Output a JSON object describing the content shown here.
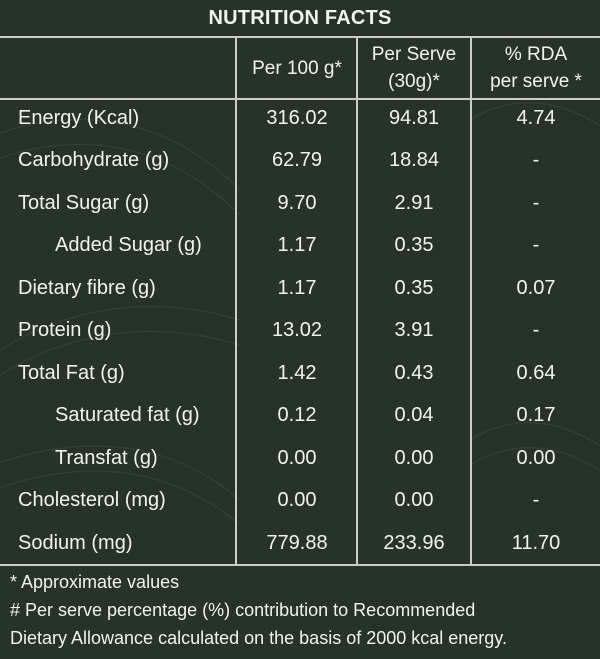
{
  "title": "NUTRITION FACTS",
  "headers": [
    {
      "line1": "Per 100 g*",
      "line2": ""
    },
    {
      "line1": "Per Serve",
      "line2": "(30g)*"
    },
    {
      "line1": "% RDA",
      "line2": "per serve *"
    }
  ],
  "rows": [
    {
      "name": "Energy (Kcal)",
      "per100": "316.02",
      "serve": "94.81",
      "rda": "4.74"
    },
    {
      "name": "Carbohydrate (g)",
      "per100": "62.79",
      "serve": "18.84",
      "rda": "-"
    },
    {
      "name": "Total Sugar (g)",
      "per100": "9.70",
      "serve": "2.91",
      "rda": "-"
    },
    {
      "name": "Added Sugar (g)",
      "per100": "1.17",
      "serve": "0.35",
      "rda": "-"
    },
    {
      "name": "Dietary fibre (g)",
      "per100": "1.17",
      "serve": "0.35",
      "rda": "0.07"
    },
    {
      "name": "Protein (g)",
      "per100": "13.02",
      "serve": "3.91",
      "rda": "-"
    },
    {
      "name": "Total Fat (g)",
      "per100": "1.42",
      "serve": "0.43",
      "rda": "0.64"
    },
    {
      "name": "Saturated fat (g)",
      "per100": "0.12",
      "serve": "0.04",
      "rda": "0.17"
    },
    {
      "name": "Transfat (g)",
      "per100": "0.00",
      "serve": "0.00",
      "rda": "0.00"
    },
    {
      "name": "Cholesterol (mg)",
      "per100": "0.00",
      "serve": "0.00",
      "rda": "-"
    },
    {
      "name": "Sodium (mg)",
      "per100": "779.88",
      "serve": "233.96",
      "rda": "11.70"
    }
  ],
  "footnotes": [
    "* Approximate values",
    "# Per serve percentage (%) contribution to Recommended",
    "Dietary Allowance calculated on the basis of 2000 kcal energy."
  ],
  "colors": {
    "background": "#283327",
    "text": "#f1f3ee",
    "rule": "#c9cfc3"
  }
}
